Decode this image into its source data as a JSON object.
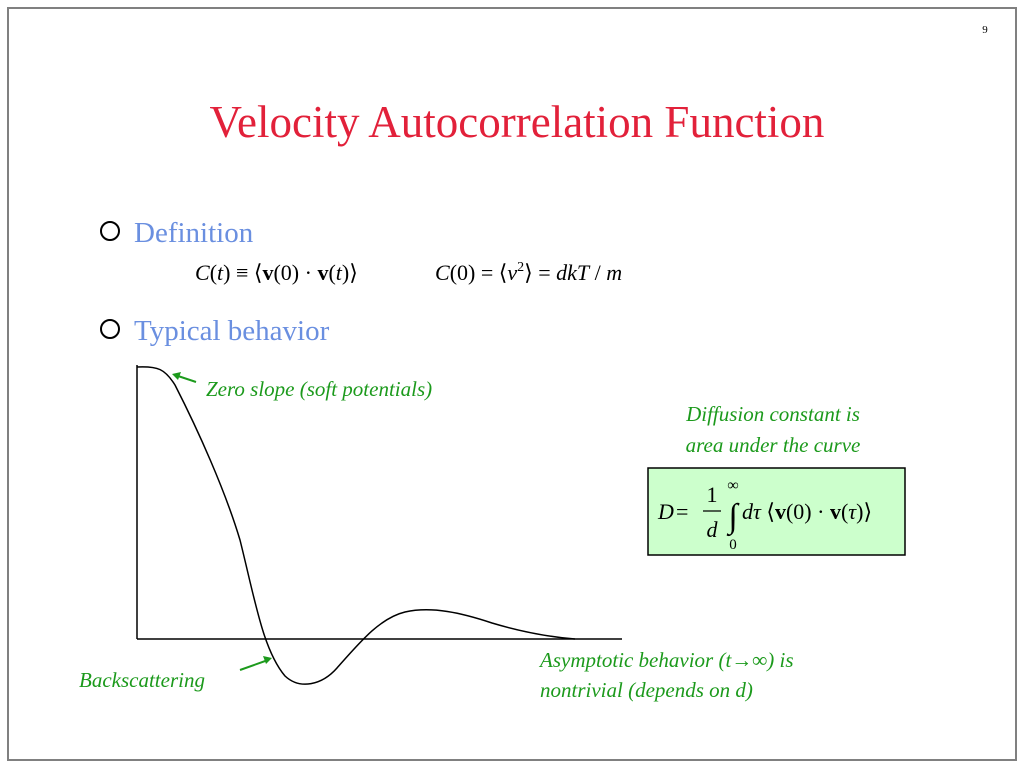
{
  "page_number": "9",
  "title": "Velocity Autocorrelation Function",
  "bullets": [
    "Definition",
    "Typical behavior"
  ],
  "equation_1": [
    "C",
    "(",
    "t",
    ") ≡ ⟨",
    "v",
    "(0) · ",
    "v",
    "(",
    "t",
    ")⟩"
  ],
  "equation_2": [
    "C",
    "(0) = ⟨",
    "v",
    "2",
    "⟩ = ",
    "dkT",
    " / ",
    "m"
  ],
  "diffusion_note": [
    "Diffusion constant is",
    "area under the curve"
  ],
  "diffusion_equation": [
    "D",
    " = ",
    "1",
    "d",
    "∞",
    "∫",
    "0",
    "d",
    "τ",
    " ⟨",
    "v",
    "(0) · ",
    "v",
    "(",
    "τ",
    ")⟩"
  ],
  "annotations": {
    "zero_slope": "Zero slope (soft potentials)",
    "backscattering": "Backscattering",
    "asymptotic": [
      "Asymptotic behavior (t→∞) is",
      "nontrivial (depends on d)"
    ]
  }
}
